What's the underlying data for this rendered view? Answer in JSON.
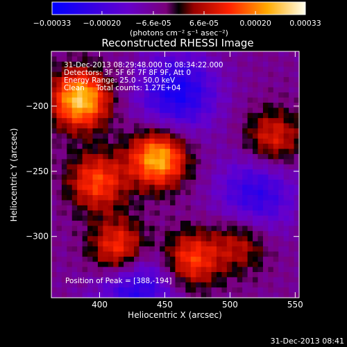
{
  "chart_data": {
    "type": "heatmap",
    "title": "Reconstructed RHESSI Image",
    "xlabel": "Heliocentric X (arcsec)",
    "ylabel": "Heliocentric Y (arcsec)",
    "xlim": [
      363,
      553
    ],
    "ylim": [
      -347,
      -158
    ],
    "x_ticks": [
      400,
      450,
      500,
      550
    ],
    "y_ticks": [
      -200,
      -250,
      -300
    ],
    "colorbar": {
      "min": -0.00033,
      "max": 0.00033,
      "tick_values": [
        -0.00033,
        -0.0002,
        -6.6e-05,
        6.6e-05,
        0.0002,
        0.00033
      ],
      "tick_labels": [
        "-0.00033",
        "-0.00020",
        "-6.6e-05",
        "6.6e-05",
        "0.00020",
        "0.00033"
      ],
      "unit_label": "(photons cm⁻² s⁻¹ asec⁻²)"
    },
    "annotations": {
      "time_range": "31-Dec-2013 08:29:48.000 to 08:34:22.000",
      "detectors": "Detectors: 3F 5F 6F 7F 8F 9F, Att 0",
      "energy_range": "Energy Range: 25.0 - 50.0 keV",
      "clean_counts": "Clean     Total counts: 1.27E+04",
      "peak_position": "Position of Peak = [388,-194]"
    },
    "sources": [
      {
        "x": 385,
        "y": -195,
        "value": 0.00033
      },
      {
        "x": 445,
        "y": -240,
        "value": 0.00031
      },
      {
        "x": 533,
        "y": -225,
        "value": 0.00017
      },
      {
        "x": 398,
        "y": -258,
        "value": 0.00021
      },
      {
        "x": 415,
        "y": -310,
        "value": 0.00024
      },
      {
        "x": 470,
        "y": -318,
        "value": 0.00021
      },
      {
        "x": 508,
        "y": -305,
        "value": 0.00014
      }
    ],
    "negative_regions": [
      {
        "x": 460,
        "y": -190,
        "value": -0.00022
      },
      {
        "x": 520,
        "y": -268,
        "value": -0.00018
      },
      {
        "x": 428,
        "y": -338,
        "value": -0.0002
      }
    ]
  },
  "footer": {
    "timestamp": "31-Dec-2013 08:41"
  }
}
